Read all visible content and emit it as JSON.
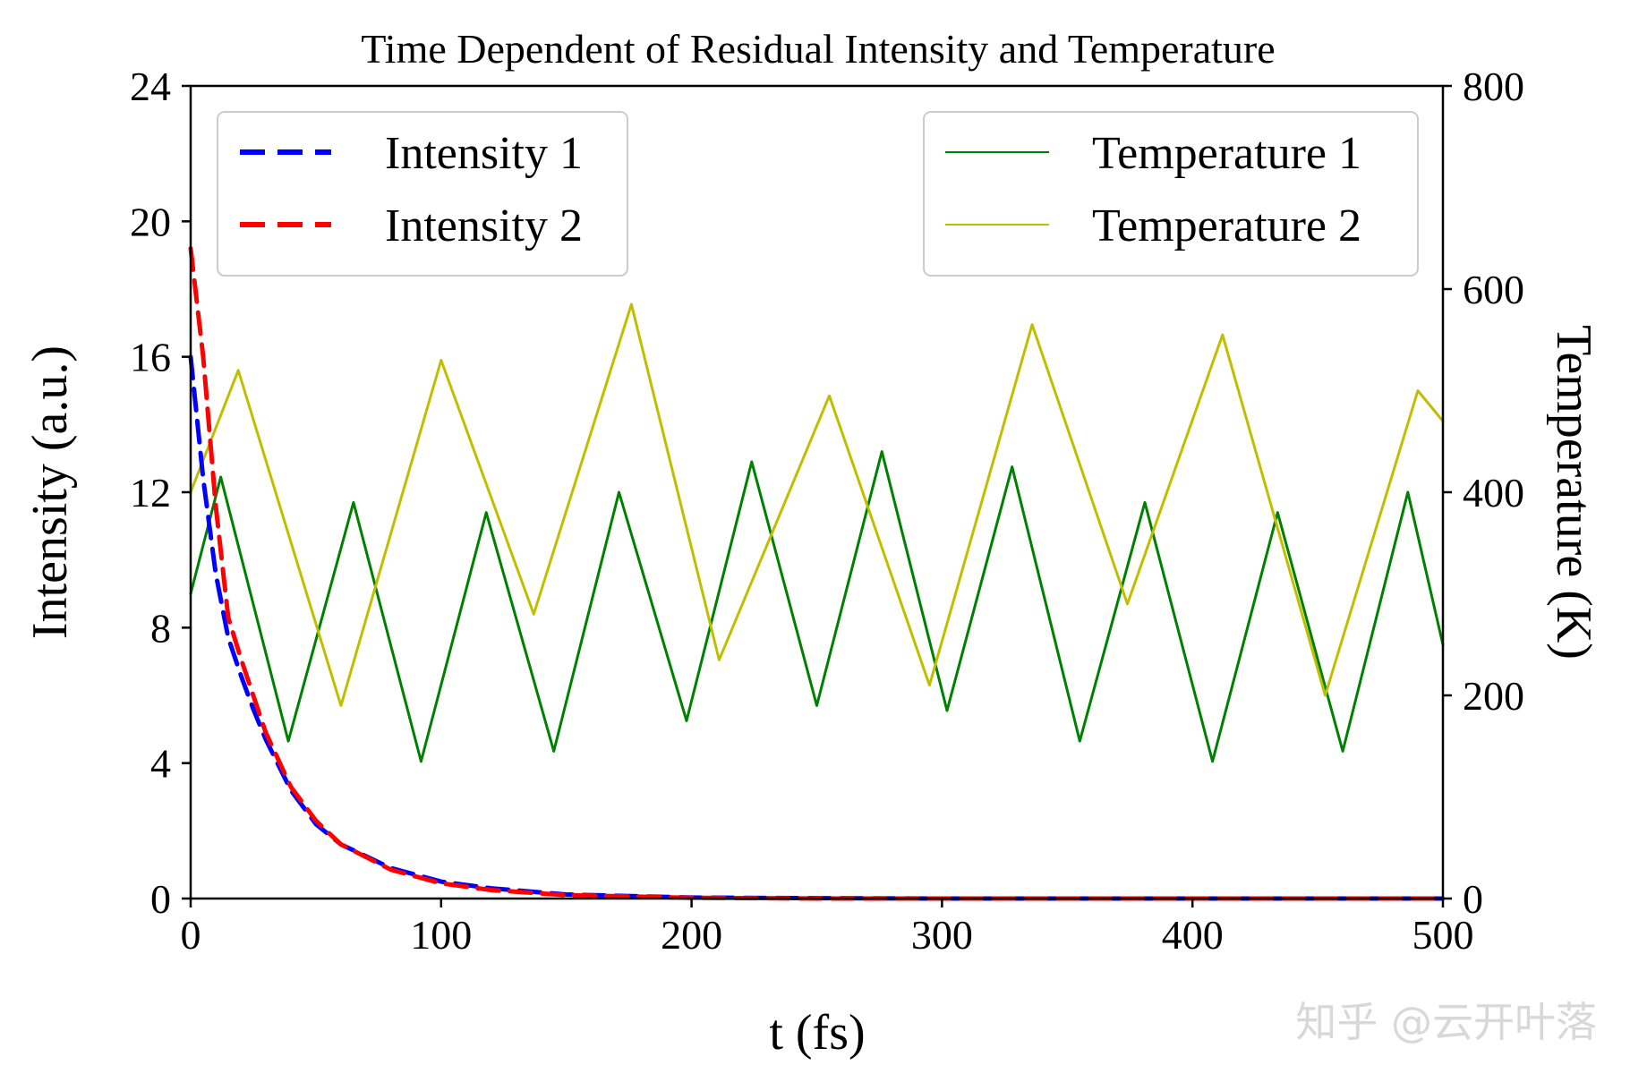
{
  "chart_data": {
    "type": "line",
    "title": "Time Dependent of Residual Intensity and Temperature",
    "xlabel": "t (fs)",
    "ylabel_left": "Intensity (a.u.)",
    "ylabel_right": "Temperature (K)",
    "xlim": [
      0,
      500
    ],
    "ylim_left": [
      0,
      24
    ],
    "ylim_right": [
      0,
      800
    ],
    "xticks": [
      "0",
      "100",
      "200",
      "300",
      "400",
      "500"
    ],
    "yticks_left": [
      "0",
      "4",
      "8",
      "12",
      "16",
      "20",
      "24"
    ],
    "yticks_right": [
      "0",
      "200",
      "400",
      "600",
      "800"
    ],
    "grid": false,
    "legend_left_position": "top-left",
    "legend_right_position": "top-right",
    "series": [
      {
        "name": "Intensity 1",
        "axis": "left",
        "style": "dashed",
        "color": "#0000ff",
        "x": [
          0,
          5,
          10,
          15,
          20,
          25,
          30,
          40,
          50,
          60,
          80,
          100,
          120,
          150,
          200,
          250,
          300,
          400,
          500
        ],
        "y": [
          16.0,
          12.4,
          9.6,
          7.7,
          6.6,
          5.6,
          4.7,
          3.2,
          2.2,
          1.6,
          0.9,
          0.5,
          0.3,
          0.12,
          0.03,
          0.01,
          0.0,
          0.0,
          0.0
        ]
      },
      {
        "name": "Intensity 2",
        "axis": "left",
        "style": "dashed",
        "color": "#ff0000",
        "x": [
          0,
          5,
          10,
          15,
          20,
          25,
          30,
          40,
          50,
          60,
          80,
          100,
          120,
          150,
          200,
          250,
          300,
          400,
          500
        ],
        "y": [
          19.2,
          16.0,
          11.6,
          8.3,
          7.1,
          6.0,
          4.9,
          3.3,
          2.3,
          1.6,
          0.85,
          0.45,
          0.25,
          0.1,
          0.02,
          0.0,
          0.0,
          0.0,
          0.0
        ]
      },
      {
        "name": "Temperature 1",
        "axis": "right",
        "style": "solid",
        "color": "#008000",
        "x": [
          0,
          12,
          39,
          65,
          92,
          118,
          145,
          171,
          198,
          224,
          250,
          276,
          302,
          328,
          355,
          381,
          408,
          434,
          460,
          486,
          500
        ],
        "y": [
          300,
          415,
          155,
          390,
          135,
          380,
          145,
          400,
          175,
          430,
          190,
          440,
          185,
          425,
          155,
          390,
          135,
          380,
          145,
          400,
          250
        ]
      },
      {
        "name": "Temperature 2",
        "axis": "right",
        "style": "solid",
        "color": "#bfbf00",
        "x": [
          0,
          19,
          60,
          100,
          137,
          176,
          211,
          255,
          295,
          336,
          374,
          412,
          453,
          490,
          500
        ],
        "y": [
          400,
          520,
          190,
          530,
          280,
          585,
          235,
          495,
          210,
          565,
          290,
          555,
          200,
          500,
          470
        ]
      }
    ]
  },
  "watermark": "知乎 @云开叶落"
}
